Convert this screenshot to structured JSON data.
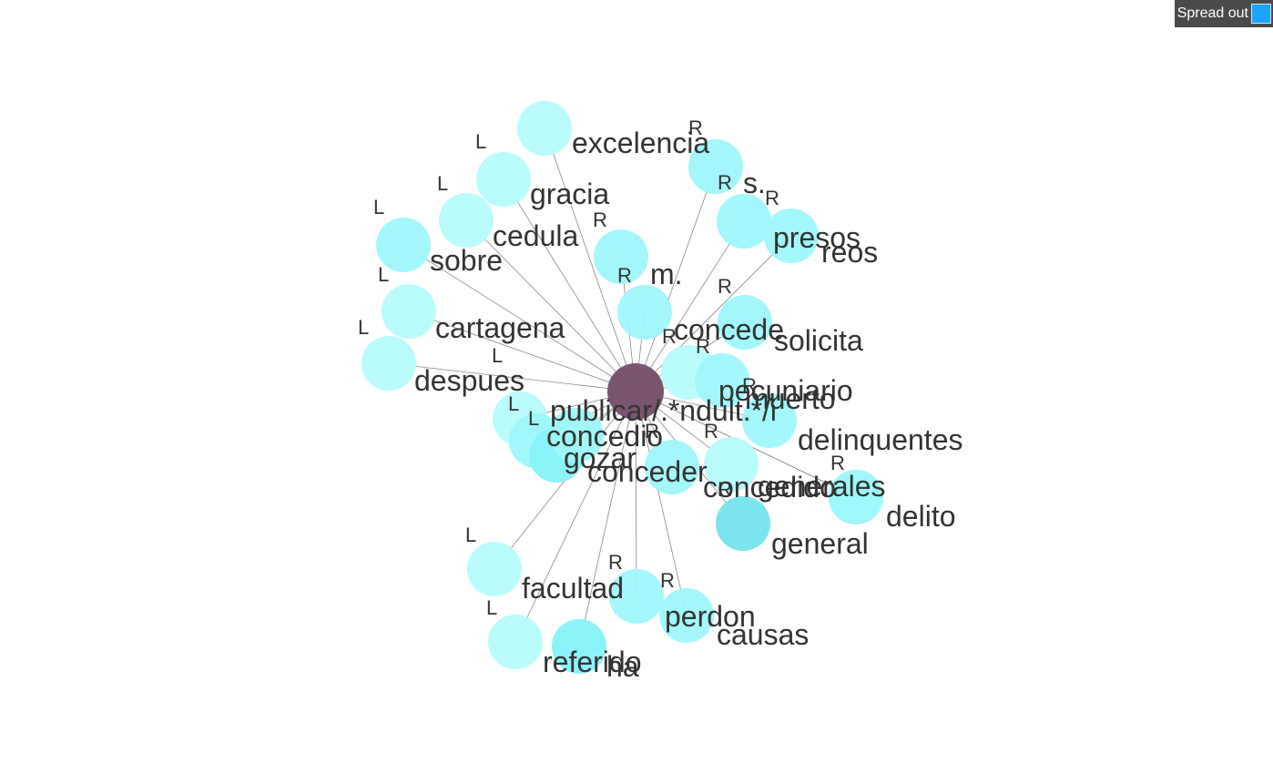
{
  "control": {
    "label": "Spread out",
    "accent": "#1aa3ff"
  },
  "colors": {
    "center": "#7a5570",
    "leaf_light": "#b6fbfc",
    "leaf_mid": "#9ef7fb",
    "leaf_strong": "#86f3f9",
    "leaf_dark": "#74e4ec",
    "edge": "#8a8a8a"
  },
  "graph": {
    "center": {
      "label": "publicar/.*ndult.*/i"
    },
    "nodes": [
      {
        "id": "excelencia",
        "label": "excelencia",
        "side": "L",
        "shade": "leaf_light"
      },
      {
        "id": "gracia",
        "label": "gracia",
        "side": "L",
        "shade": "leaf_light"
      },
      {
        "id": "cedula",
        "label": "cedula",
        "side": "L",
        "shade": "leaf_light"
      },
      {
        "id": "sobre",
        "label": "sobre",
        "side": "L",
        "shade": "leaf_mid"
      },
      {
        "id": "cartagena",
        "label": "cartagena",
        "side": "L",
        "shade": "leaf_light"
      },
      {
        "id": "despues",
        "label": "despues",
        "side": "L",
        "shade": "leaf_light"
      },
      {
        "id": "concedio",
        "label": "concedio",
        "side": "L",
        "shade": "leaf_light"
      },
      {
        "id": "gozar",
        "label": "gozar",
        "side": "L",
        "shade": "leaf_mid"
      },
      {
        "id": "gozar2",
        "label": "",
        "side": "L",
        "shade": "leaf_strong"
      },
      {
        "id": "facultad",
        "label": "facultad",
        "side": "L",
        "shade": "leaf_light"
      },
      {
        "id": "referido",
        "label": "referido",
        "side": "L",
        "shade": "leaf_light"
      },
      {
        "id": "ha",
        "label": "ha",
        "side": "",
        "shade": "leaf_strong"
      },
      {
        "id": "s",
        "label": "s.",
        "side": "R",
        "shade": "leaf_mid"
      },
      {
        "id": "presos",
        "label": "presos",
        "side": "R",
        "shade": "leaf_mid"
      },
      {
        "id": "reos",
        "label": "reos",
        "side": "R",
        "shade": "leaf_mid"
      },
      {
        "id": "m",
        "label": "m.",
        "side": "R",
        "shade": "leaf_mid"
      },
      {
        "id": "concede",
        "label": "concede",
        "side": "R",
        "shade": "leaf_mid"
      },
      {
        "id": "solicita",
        "label": "solicita",
        "side": "R",
        "shade": "leaf_mid"
      },
      {
        "id": "pecuniario",
        "label": "pecuniario",
        "side": "R",
        "shade": "leaf_light"
      },
      {
        "id": "muerto",
        "label": "muerto",
        "side": "R",
        "shade": "leaf_mid"
      },
      {
        "id": "delinquentes",
        "label": "delinquentes",
        "side": "R",
        "shade": "leaf_mid"
      },
      {
        "id": "concedio_r",
        "label": "concedio",
        "side": "R",
        "shade": "leaf_mid"
      },
      {
        "id": "conceder",
        "label": "conceder",
        "side": "R",
        "shade": "leaf_mid"
      },
      {
        "id": "concedido",
        "label": "concedido",
        "side": "R",
        "shade": "leaf_light"
      },
      {
        "id": "generales",
        "label": "generales",
        "side": "R",
        "shade": "leaf_mid"
      },
      {
        "id": "delito",
        "label": "delito",
        "side": "R",
        "shade": "leaf_mid"
      },
      {
        "id": "general",
        "label": "general",
        "side": "R",
        "shade": "leaf_dark"
      },
      {
        "id": "perdon",
        "label": "perdon",
        "side": "R",
        "shade": "leaf_mid"
      },
      {
        "id": "causas",
        "label": "causas",
        "side": "R",
        "shade": "leaf_mid"
      }
    ]
  }
}
